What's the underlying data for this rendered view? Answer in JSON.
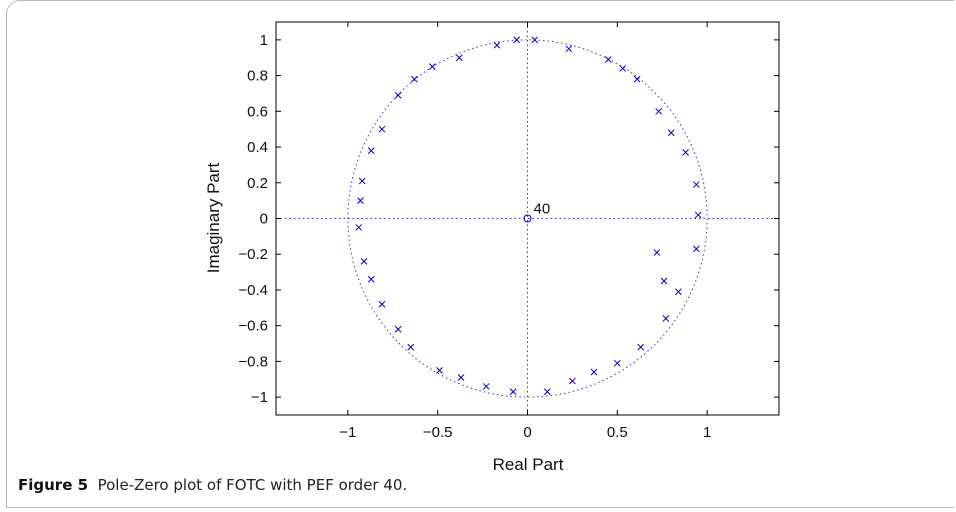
{
  "caption": {
    "label": "Figure 5",
    "text": "Pole-Zero plot of FOTC with PEF order 40."
  },
  "chart_data": {
    "type": "scatter",
    "title": "",
    "xlabel": "Real Part",
    "ylabel": "Imaginary Part",
    "xlim": [
      -1.4,
      1.4
    ],
    "ylim": [
      -1.1,
      1.1
    ],
    "xticks": [
      -1,
      -0.5,
      0,
      0.5,
      1
    ],
    "yticks": [
      -1,
      -0.8,
      -0.6,
      -0.4,
      -0.2,
      0,
      0.2,
      0.4,
      0.6,
      0.8,
      1
    ],
    "xtick_labels": [
      "−1",
      "−0.5",
      "0",
      "0.5",
      "1"
    ],
    "ytick_labels": [
      "−1",
      "−0.8",
      "−0.6",
      "−0.4",
      "−0.2",
      "0",
      "0.2",
      "0.4",
      "0.6",
      "0.8",
      "1"
    ],
    "unit_circle": true,
    "axis_lines": true,
    "zero_label": "40",
    "colors": {
      "marker": "#0000cc",
      "circle": "#3333cc",
      "axis": "#333333"
    },
    "zeros": [
      {
        "x": 0.0,
        "y": 0.0
      }
    ],
    "poles": [
      {
        "x": -0.06,
        "y": 1.0
      },
      {
        "x": 0.04,
        "y": 1.0
      },
      {
        "x": -0.17,
        "y": 0.97
      },
      {
        "x": 0.23,
        "y": 0.95
      },
      {
        "x": -0.38,
        "y": 0.9
      },
      {
        "x": 0.45,
        "y": 0.89
      },
      {
        "x": -0.53,
        "y": 0.85
      },
      {
        "x": 0.53,
        "y": 0.84
      },
      {
        "x": -0.63,
        "y": 0.78
      },
      {
        "x": 0.61,
        "y": 0.78
      },
      {
        "x": -0.72,
        "y": 0.69
      },
      {
        "x": 0.73,
        "y": 0.6
      },
      {
        "x": -0.81,
        "y": 0.5
      },
      {
        "x": 0.8,
        "y": 0.48
      },
      {
        "x": -0.87,
        "y": 0.38
      },
      {
        "x": 0.88,
        "y": 0.37
      },
      {
        "x": -0.92,
        "y": 0.21
      },
      {
        "x": 0.94,
        "y": 0.19
      },
      {
        "x": -0.93,
        "y": 0.1
      },
      {
        "x": 0.95,
        "y": 0.02
      },
      {
        "x": -0.94,
        "y": -0.05
      },
      {
        "x": 0.94,
        "y": -0.17
      },
      {
        "x": 0.72,
        "y": -0.19
      },
      {
        "x": -0.91,
        "y": -0.24
      },
      {
        "x": -0.87,
        "y": -0.34
      },
      {
        "x": 0.76,
        "y": -0.35
      },
      {
        "x": 0.84,
        "y": -0.41
      },
      {
        "x": -0.81,
        "y": -0.48
      },
      {
        "x": 0.77,
        "y": -0.56
      },
      {
        "x": -0.72,
        "y": -0.62
      },
      {
        "x": -0.65,
        "y": -0.72
      },
      {
        "x": 0.63,
        "y": -0.72
      },
      {
        "x": 0.5,
        "y": -0.81
      },
      {
        "x": -0.49,
        "y": -0.85
      },
      {
        "x": 0.37,
        "y": -0.86
      },
      {
        "x": -0.37,
        "y": -0.89
      },
      {
        "x": 0.25,
        "y": -0.91
      },
      {
        "x": -0.23,
        "y": -0.94
      },
      {
        "x": -0.08,
        "y": -0.97
      },
      {
        "x": 0.11,
        "y": -0.97
      }
    ]
  }
}
